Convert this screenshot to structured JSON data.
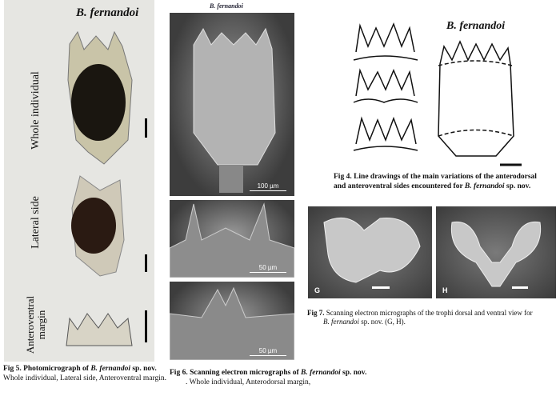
{
  "fig5": {
    "title": "B. fernandoi",
    "row_labels": [
      "Whole individual",
      "Lateral  side",
      "Anteroventral margin"
    ],
    "caption_prefix": "Fig 5.  Photomicrograph of ",
    "caption_species": "B. fernandoi",
    "caption_suffix": " sp. nov.",
    "caption_line2": "Whole individual, Lateral side, Anteroventral margin."
  },
  "fig6": {
    "title": "B. fernandoi",
    "scales": [
      "100 µm",
      "50 µm",
      "50 µm"
    ],
    "caption_prefix": "Fig 6.  Scanning electron micrographs of ",
    "caption_species": "B. fernandoi",
    "caption_suffix": " sp. nov.",
    "caption_line2": ". Whole individual, Anterodorsal margin,"
  },
  "fig4": {
    "title": "B. fernandoi",
    "caption_line1": "Fig 4.  Line drawings of the main variations of the anterodorsal",
    "caption_line2_prefix": "and anteroventral sides encountered for ",
    "caption_species": "B. fernandoi",
    "caption_suffix": " sp. nov."
  },
  "fig7": {
    "panel_labels": [
      "G",
      "H"
    ],
    "caption_prefix": "Fig 7.",
    "caption_line1": "  Scanning electron micrographs of the trophi dorsal and ventral view for",
    "caption_species": "B. fernandoi",
    "caption_suffix": "  sp. nov. (G, H)."
  }
}
